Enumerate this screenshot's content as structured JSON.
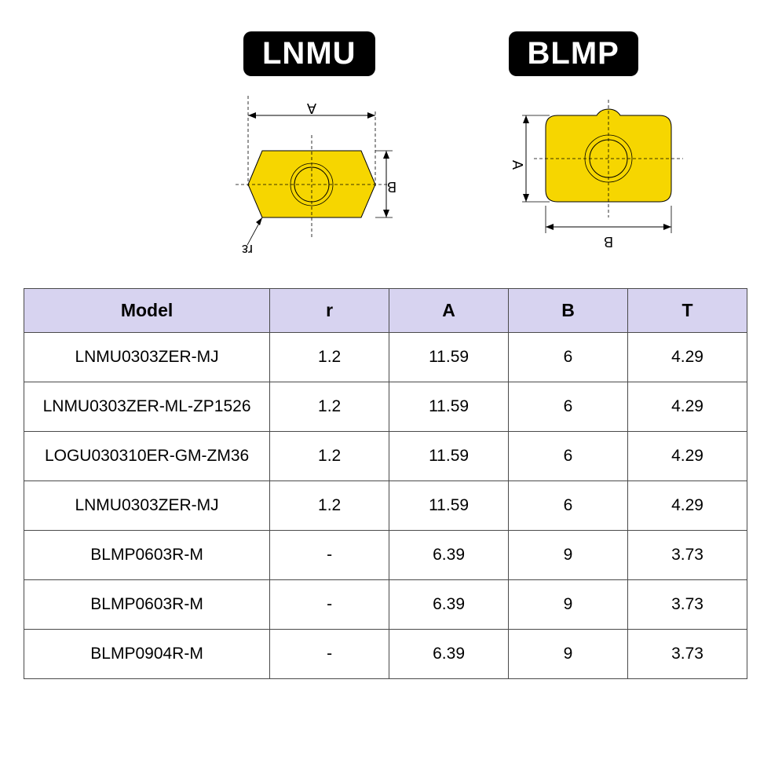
{
  "badges": {
    "left": "LNMU",
    "right": "BLMP"
  },
  "diagrams": {
    "lnmu": {
      "labels": {
        "A": "A",
        "B": "B",
        "r": "rε"
      },
      "shape_fill": "#f6d600",
      "shape_stroke": "#000000",
      "hole_stroke": "#000000"
    },
    "blmp": {
      "labels": {
        "A": "A",
        "B": "B"
      },
      "shape_fill": "#f6d600",
      "shape_stroke": "#000000"
    }
  },
  "table": {
    "header_bg": "#d7d3f0",
    "columns": [
      "Model",
      "r",
      "A",
      "B",
      "T"
    ],
    "rows": [
      [
        "LNMU0303ZER-MJ",
        "1.2",
        "11.59",
        "6",
        "4.29"
      ],
      [
        "LNMU0303ZER-ML-ZP1526",
        "1.2",
        "11.59",
        "6",
        "4.29"
      ],
      [
        "LOGU030310ER-GM-ZM36",
        "1.2",
        "11.59",
        "6",
        "4.29"
      ],
      [
        "LNMU0303ZER-MJ",
        "1.2",
        "11.59",
        "6",
        "4.29"
      ],
      [
        "BLMP0603R-M",
        "-",
        "6.39",
        "9",
        "3.73"
      ],
      [
        "BLMP0603R-M",
        "-",
        "6.39",
        "9",
        "3.73"
      ],
      [
        "BLMP0904R-M",
        "-",
        "6.39",
        "9",
        "3.73"
      ]
    ]
  }
}
